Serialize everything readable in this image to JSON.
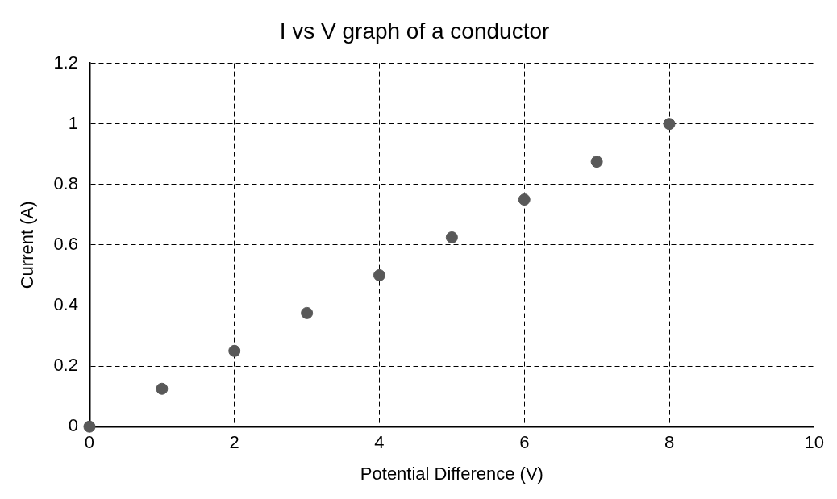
{
  "chart_data": {
    "type": "scatter",
    "title": "I vs V graph of a conductor",
    "xlabel": "Potential Difference (V)",
    "ylabel": "Current (A)",
    "x": [
      0,
      1,
      2,
      3,
      4,
      5,
      6,
      7,
      8
    ],
    "series": [
      {
        "color": "#595959",
        "values": [
          0,
          0.125,
          0.25,
          0.375,
          0.5,
          0.625,
          0.75,
          0.875,
          1
        ]
      }
    ],
    "xlim": [
      0,
      10
    ],
    "xticks": [
      0,
      2,
      4,
      6,
      8,
      10
    ],
    "ylim": [
      0,
      1.2
    ],
    "yticks": [
      0,
      0.2,
      0.4,
      0.6,
      0.8,
      1,
      1.2
    ],
    "grid": true,
    "marker": "circle",
    "legend": false
  }
}
